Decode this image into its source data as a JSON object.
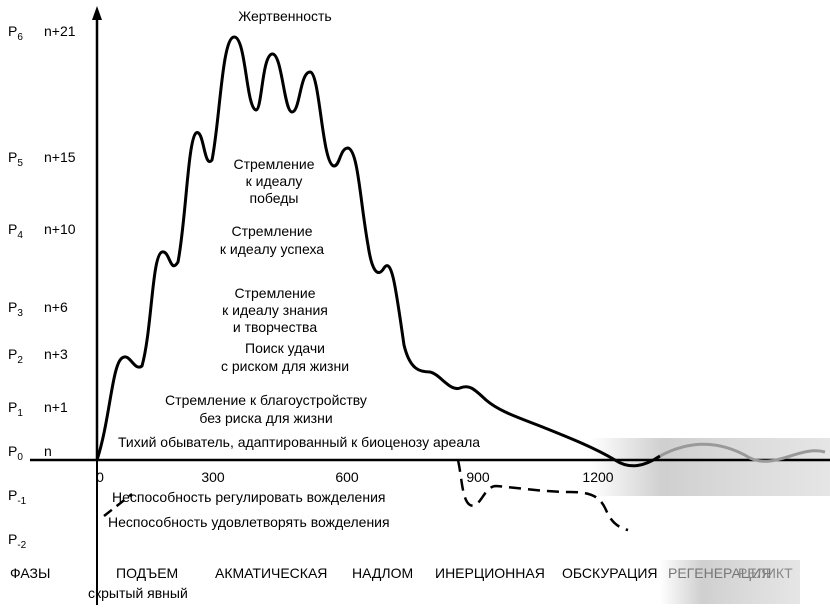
{
  "title": "Жертвенность",
  "levels": [
    {
      "level": "P",
      "sub": "6",
      "index": "n+21"
    },
    {
      "level": "P",
      "sub": "5",
      "index": "n+15"
    },
    {
      "level": "P",
      "sub": "4",
      "index": "n+10"
    },
    {
      "level": "P",
      "sub": "3",
      "index": "n+6"
    },
    {
      "level": "P",
      "sub": "2",
      "index": "n+3"
    },
    {
      "level": "P",
      "sub": "1",
      "index": "n+1"
    },
    {
      "level": "P",
      "sub": "0",
      "index": "n"
    },
    {
      "level": "P",
      "sub": "-1"
    },
    {
      "level": "P",
      "sub": "-2"
    }
  ],
  "x_ticks": [
    "0",
    "300",
    "600",
    "900",
    "1200"
  ],
  "labels": [
    [
      "Стремление",
      "к идеалу",
      "победы"
    ],
    [
      "Стремление",
      "к идеалу успеха"
    ],
    [
      "Стремление",
      "к идеалу знания",
      "и творчества"
    ],
    [
      "Поиск удачи",
      "с риском для жизни"
    ],
    [
      "Стремление к благоустройству",
      "без риска для жизни"
    ],
    [
      "Тихий обыватель, адаптированный к биоценозу ареала"
    ],
    [
      "Неспособность регулировать вожделения"
    ],
    [
      "Неспособность удовлетворять вожделения"
    ]
  ],
  "phases": {
    "label": "ФАЗЫ",
    "names": [
      "ПОДЪЕМ",
      "АКМАТИЧЕСКАЯ",
      "НАДЛОМ",
      "ИНЕРЦИОННАЯ",
      "ОБСКУРАЦИЯ",
      "РЕГЕНЕРАЦИЯ",
      "РЕЛИКТ"
    ],
    "rise_subphases": "скрытый явный"
  }
}
